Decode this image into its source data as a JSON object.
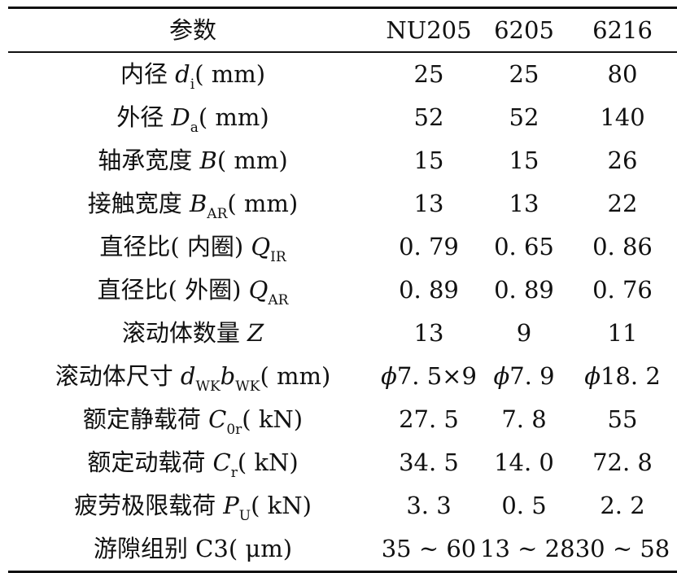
{
  "table": {
    "header": {
      "param": "参数",
      "columns": [
        "NU205",
        "6205",
        "6216"
      ]
    },
    "rows": [
      {
        "pre": "内径 ",
        "sym": "d",
        "sub": "i",
        "post": "( mm)",
        "values": [
          "25",
          "25",
          "80"
        ]
      },
      {
        "pre": "外径 ",
        "sym": "D",
        "sub": "a",
        "post": "( mm)",
        "values": [
          "52",
          "52",
          "140"
        ]
      },
      {
        "pre": "轴承宽度 ",
        "sym": "B",
        "sub": "",
        "post": "( mm)",
        "values": [
          "15",
          "15",
          "26"
        ]
      },
      {
        "pre": "接触宽度 ",
        "sym": "B",
        "sub": "AR",
        "post": "( mm)",
        "values": [
          "13",
          "13",
          "22"
        ]
      },
      {
        "pre": "直径比( 内圈) ",
        "sym": "Q",
        "sub": "IR",
        "post": "",
        "values": [
          "0. 79",
          "0. 65",
          "0. 86"
        ]
      },
      {
        "pre": "直径比( 外圈) ",
        "sym": "Q",
        "sub": "AR",
        "post": "",
        "values": [
          "0. 89",
          "0. 89",
          "0. 76"
        ]
      },
      {
        "pre": "滚动体数量 ",
        "sym": "Z",
        "sub": "",
        "post": "",
        "values": [
          "13",
          "9",
          "11"
        ]
      },
      {
        "pre": "滚动体尺寸 ",
        "sym": "d",
        "sub": "WK",
        "sym2": "b",
        "sub2": "WK",
        "post": "( mm)",
        "values": [
          "ϕ7. 5×9",
          "ϕ7. 9",
          "ϕ18. 2"
        ]
      },
      {
        "pre": "额定静载荷 ",
        "sym": "C",
        "sub": "0r",
        "post": "( kN)",
        "values": [
          "27. 5",
          "7. 8",
          "55"
        ]
      },
      {
        "pre": "额定动载荷 ",
        "sym": "C",
        "sub": "r",
        "post": "( kN)",
        "values": [
          "34. 5",
          "14. 0",
          "72. 8"
        ]
      },
      {
        "pre": "疲劳极限载荷 ",
        "sym": "P",
        "sub": "U",
        "post": "( kN)",
        "values": [
          "3. 3",
          "0. 5",
          "2. 2"
        ]
      },
      {
        "pre": "游隙组别 C3( ",
        "sym": "",
        "sub": "",
        "post": "μm)",
        "values": [
          "35 ~ 60",
          "13 ~ 28",
          "30 ~ 58"
        ]
      }
    ]
  }
}
